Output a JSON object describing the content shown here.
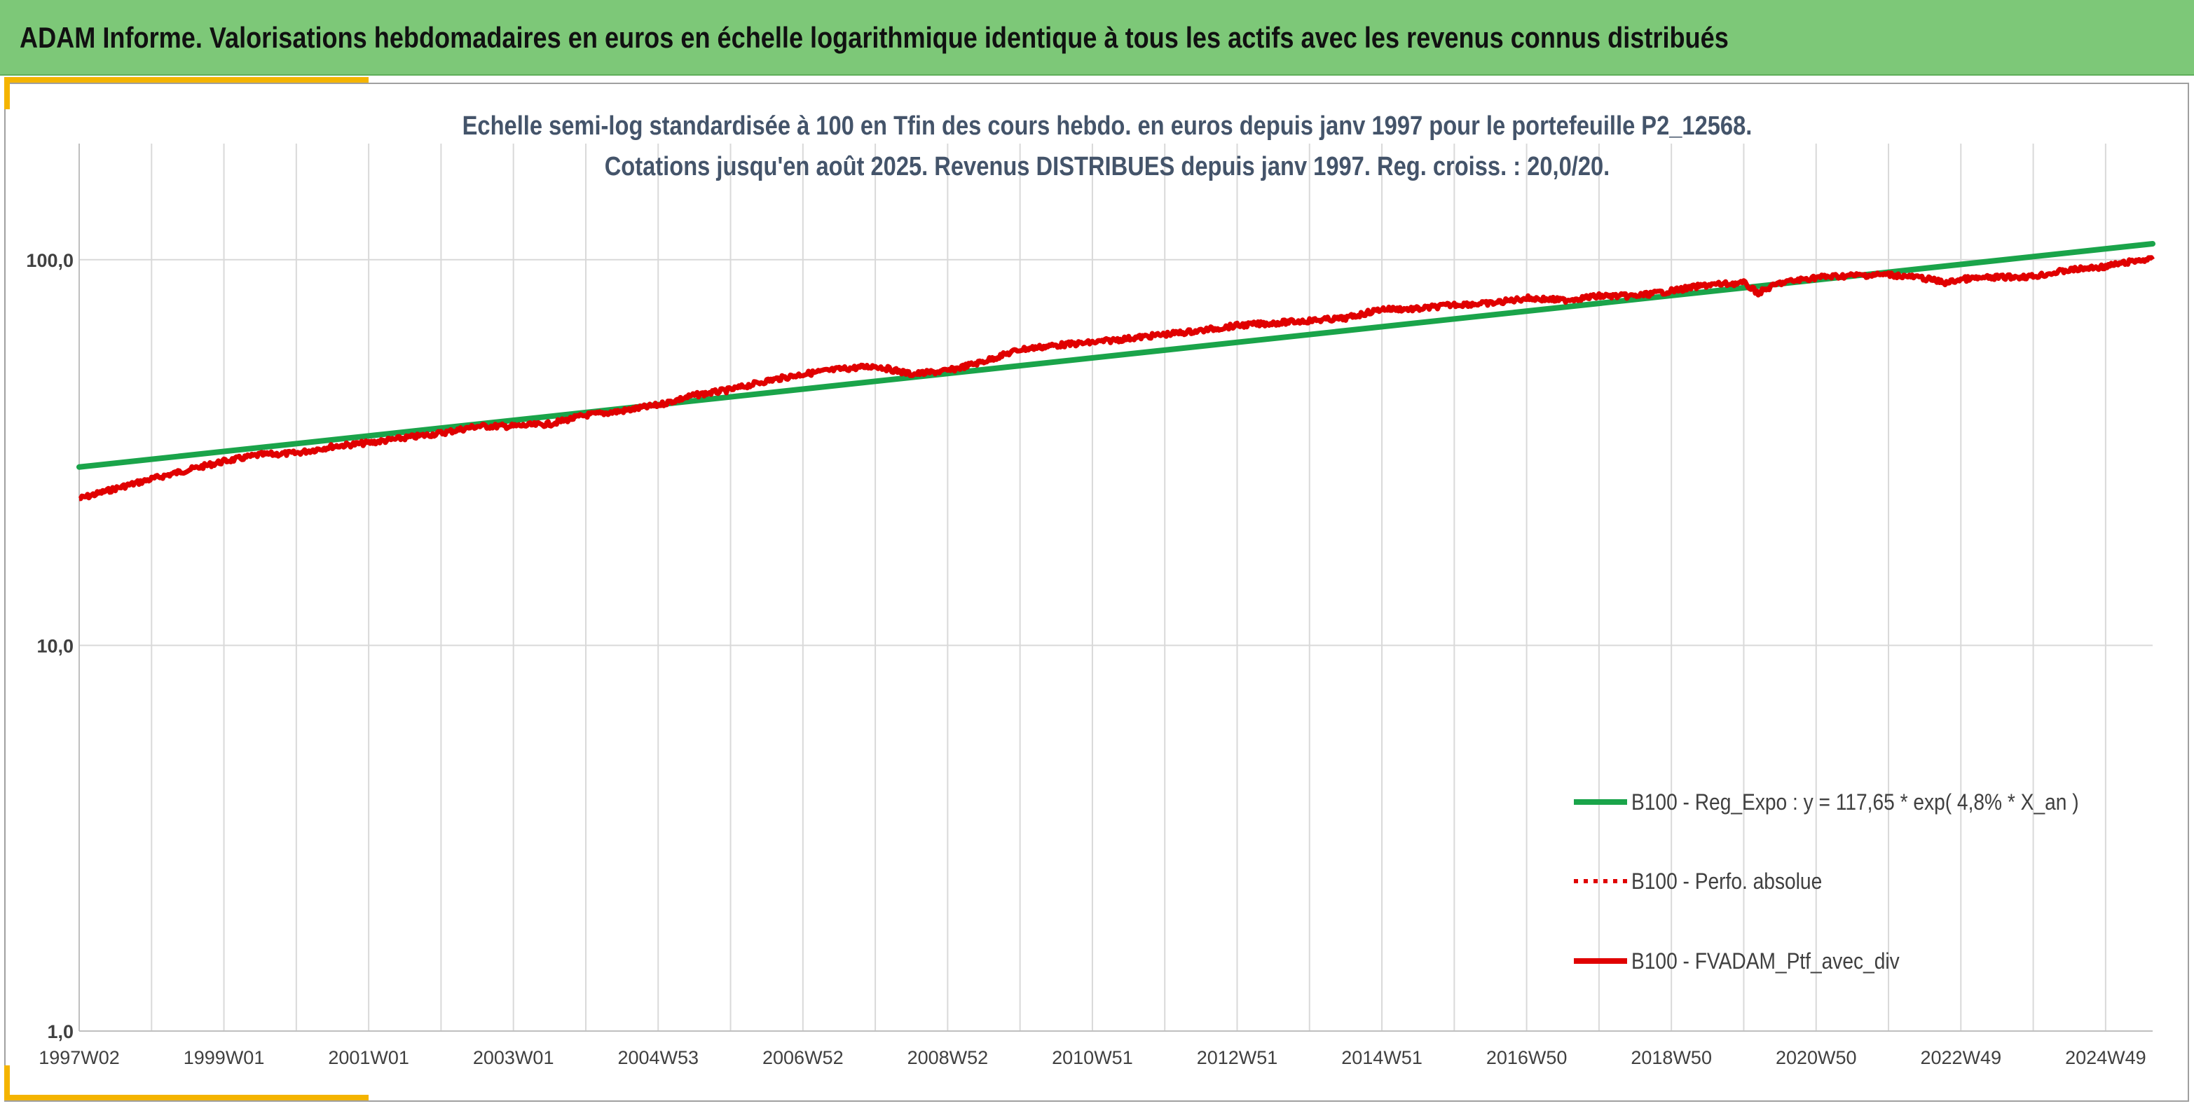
{
  "banner": {
    "title": "ADAM Informe. Valorisations hebdomadaires en euros en échelle logarithmique identique à tous les actifs avec les revenus connus distribués",
    "background": "#7dc878"
  },
  "colors": {
    "accent": "#f4b400",
    "regression": "#1aa44a",
    "portfolio": "#e00000",
    "title_text": "#44546a"
  },
  "chart_data": {
    "type": "line",
    "title": "Echelle semi-log standardisée à 100 en Tfin des cours hebdo. en euros depuis janv 1997 pour le portefeuille P2_12568.",
    "subtitle": "Cotations jusqu'en août 2025. Revenus DISTRIBUES depuis janv 1997. Reg. croiss. : 20,0/20.",
    "y_scale": "log",
    "ylim": [
      1,
      200
    ],
    "y_ticks": [
      {
        "value": 1,
        "label": "1,0"
      },
      {
        "value": 10,
        "label": "10,0"
      },
      {
        "value": 100,
        "label": "100,0"
      }
    ],
    "xlim": [
      1997.0,
      2025.65
    ],
    "x_ticks": [
      {
        "x": 1997.0,
        "label": "1997W02"
      },
      {
        "x": 1999.0,
        "label": "1999W01"
      },
      {
        "x": 2001.0,
        "label": "2001W01"
      },
      {
        "x": 2003.0,
        "label": "2003W01"
      },
      {
        "x": 2005.0,
        "label": "2004W53"
      },
      {
        "x": 2007.0,
        "label": "2006W52"
      },
      {
        "x": 2009.0,
        "label": "2008W52"
      },
      {
        "x": 2011.0,
        "label": "2010W51"
      },
      {
        "x": 2013.0,
        "label": "2012W51"
      },
      {
        "x": 2015.0,
        "label": "2014W51"
      },
      {
        "x": 2017.0,
        "label": "2016W50"
      },
      {
        "x": 2019.0,
        "label": "2018W50"
      },
      {
        "x": 2021.0,
        "label": "2020W50"
      },
      {
        "x": 2023.0,
        "label": "2022W49"
      },
      {
        "x": 2025.0,
        "label": "2024W49"
      }
    ],
    "vertical_grid_step_years": 1,
    "grid": true,
    "legend_position": "bottom-right",
    "series": [
      {
        "name": "B100 - Reg_Expo : y = 117,65 * exp( 4,8% *  X_an )",
        "color": "#1aa44a",
        "style": "solid",
        "x": [
          1997.0,
          2025.65
        ],
        "y": [
          29.0,
          110.0
        ]
      },
      {
        "name": "B100 - Perfo. absolue",
        "color": "#e00000",
        "style": "dotted",
        "x": [],
        "y": []
      },
      {
        "name": "B100 - FVADAM_Ptf_avec_div",
        "color": "#e00000",
        "style": "solid",
        "x": [
          1997.0,
          1997.5,
          1998.0,
          1998.5,
          1999.0,
          1999.5,
          2000.0,
          2000.5,
          2001.0,
          2001.5,
          2002.0,
          2002.5,
          2003.0,
          2003.5,
          2004.0,
          2004.5,
          2005.0,
          2005.5,
          2006.0,
          2006.5,
          2007.0,
          2007.5,
          2008.0,
          2008.5,
          2009.0,
          2009.5,
          2010.0,
          2010.5,
          2011.0,
          2011.5,
          2012.0,
          2012.5,
          2013.0,
          2013.5,
          2014.0,
          2014.5,
          2015.0,
          2015.5,
          2016.0,
          2016.5,
          2017.0,
          2017.5,
          2018.0,
          2018.5,
          2019.0,
          2019.5,
          2020.0,
          2020.2,
          2020.5,
          2021.0,
          2021.5,
          2022.0,
          2022.5,
          2022.8,
          2023.0,
          2023.5,
          2024.0,
          2024.5,
          2025.0,
          2025.5,
          2025.65
        ],
        "y": [
          24.0,
          25.5,
          27.0,
          28.5,
          30.0,
          31.2,
          31.5,
          32.8,
          33.5,
          34.5,
          35.5,
          37.0,
          37.0,
          37.5,
          39.5,
          40.5,
          42.0,
          44.5,
          46.0,
          48.5,
          50.5,
          52.0,
          53.0,
          50.5,
          51.5,
          54.5,
          58.5,
          60.0,
          61.0,
          62.5,
          64.0,
          65.5,
          67.5,
          68.5,
          69.5,
          70.5,
          74.5,
          74.5,
          76.5,
          77.0,
          79.5,
          78.5,
          80.5,
          80.5,
          83.0,
          86.0,
          87.0,
          82.0,
          87.0,
          90.0,
          91.0,
          91.5,
          89.5,
          87.0,
          89.0,
          90.0,
          90.5,
          94.0,
          96.0,
          100.0,
          100.0
        ]
      }
    ]
  }
}
